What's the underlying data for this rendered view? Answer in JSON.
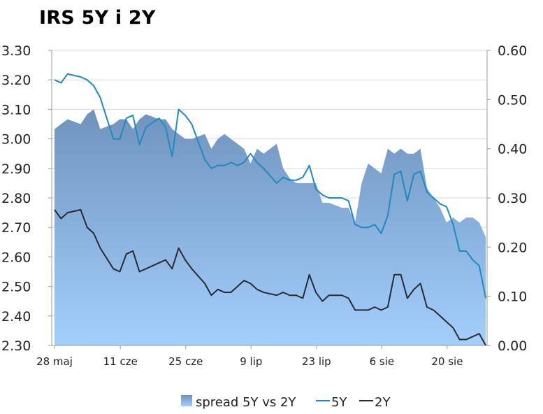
{
  "chart_data": {
    "type": "line",
    "title": "IRS 5Y i 2Y",
    "x_tick_labels": [
      "28 maj",
      "11 cze",
      "25 cze",
      "9 lip",
      "23 lip",
      "6 sie",
      "20 sie"
    ],
    "y_left": {
      "ticks": [
        "2.30",
        "2.40",
        "2.50",
        "2.60",
        "2.70",
        "2.80",
        "2.90",
        "3.00",
        "3.10",
        "3.20",
        "3.30"
      ],
      "range": [
        2.3,
        3.3
      ]
    },
    "y_right": {
      "ticks": [
        "0.00",
        "0.10",
        "0.20",
        "0.30",
        "0.40",
        "0.50",
        "0.60"
      ],
      "range": [
        0.0,
        0.6
      ]
    },
    "grid": "horizontal",
    "legend_position": "bottom",
    "colors": {
      "spread_top": "#6f93bd",
      "spread_bottom": "#9fcbfb",
      "five_y": "#1f8ac0",
      "two_y": "#2b2b2b"
    },
    "series": [
      {
        "name": "spread 5Y vs 2Y",
        "kind": "area",
        "axis": "right",
        "x": [
          0,
          1,
          2,
          4,
          5,
          6,
          7,
          9,
          10,
          11,
          12,
          13,
          14,
          16,
          17,
          18,
          19,
          20,
          21,
          23,
          24,
          25,
          26,
          27,
          28,
          29,
          30,
          31,
          32,
          34,
          35,
          36,
          37,
          38,
          39,
          40,
          41,
          42,
          44,
          45,
          46,
          47,
          48,
          49,
          50,
          51,
          52,
          53,
          54,
          55,
          56,
          57,
          58,
          59,
          60,
          61,
          62,
          63,
          64,
          65,
          66
        ],
        "values": [
          0.44,
          0.45,
          0.46,
          0.45,
          0.47,
          0.48,
          0.44,
          0.45,
          0.46,
          0.46,
          0.44,
          0.46,
          0.47,
          0.46,
          0.46,
          0.44,
          0.43,
          0.42,
          0.42,
          0.43,
          0.4,
          0.42,
          0.43,
          0.42,
          0.41,
          0.4,
          0.37,
          0.4,
          0.39,
          0.41,
          0.36,
          0.34,
          0.33,
          0.33,
          0.33,
          0.33,
          0.29,
          0.29,
          0.28,
          0.28,
          0.25,
          0.33,
          0.37,
          0.36,
          0.35,
          0.4,
          0.39,
          0.4,
          0.39,
          0.39,
          0.4,
          0.32,
          0.3,
          0.28,
          0.25,
          0.26,
          0.25,
          0.26,
          0.26,
          0.25,
          0.22
        ]
      },
      {
        "name": "5Y",
        "kind": "line",
        "axis": "left",
        "x": [
          0,
          1,
          2,
          4,
          5,
          6,
          7,
          9,
          10,
          11,
          12,
          13,
          14,
          16,
          17,
          18,
          19,
          20,
          21,
          23,
          24,
          25,
          26,
          27,
          28,
          29,
          30,
          31,
          32,
          34,
          35,
          36,
          37,
          38,
          39,
          40,
          41,
          42,
          44,
          45,
          46,
          47,
          48,
          49,
          50,
          51,
          52,
          53,
          54,
          55,
          56,
          57,
          58,
          59,
          60,
          61,
          62,
          63,
          64,
          65,
          66
        ],
        "values": [
          3.2,
          3.19,
          3.22,
          3.21,
          3.2,
          3.18,
          3.14,
          3.0,
          3.0,
          3.07,
          3.08,
          2.98,
          3.04,
          3.07,
          3.04,
          2.94,
          3.1,
          3.08,
          3.05,
          2.93,
          2.9,
          2.91,
          2.91,
          2.92,
          2.91,
          2.92,
          2.95,
          2.92,
          2.9,
          2.85,
          2.87,
          2.86,
          2.86,
          2.87,
          2.91,
          2.83,
          2.81,
          2.8,
          2.8,
          2.79,
          2.71,
          2.7,
          2.7,
          2.71,
          2.68,
          2.74,
          2.88,
          2.89,
          2.79,
          2.88,
          2.89,
          2.82,
          2.8,
          2.78,
          2.77,
          2.71,
          2.62,
          2.62,
          2.59,
          2.57,
          2.46
        ]
      },
      {
        "name": "2Y",
        "kind": "line",
        "axis": "left",
        "x": [
          0,
          1,
          2,
          4,
          5,
          6,
          7,
          9,
          10,
          11,
          12,
          13,
          14,
          16,
          17,
          18,
          19,
          20,
          21,
          23,
          24,
          25,
          26,
          27,
          28,
          29,
          30,
          31,
          32,
          34,
          35,
          36,
          37,
          38,
          39,
          40,
          41,
          42,
          44,
          45,
          46,
          47,
          48,
          49,
          50,
          51,
          52,
          53,
          54,
          55,
          56,
          57,
          58,
          59,
          60,
          61,
          62,
          63,
          64,
          65,
          66
        ],
        "values": [
          2.76,
          2.73,
          2.75,
          2.76,
          2.7,
          2.68,
          2.63,
          2.56,
          2.55,
          2.61,
          2.62,
          2.55,
          2.56,
          2.58,
          2.59,
          2.56,
          2.63,
          2.59,
          2.56,
          2.51,
          2.47,
          2.49,
          2.48,
          2.48,
          2.5,
          2.52,
          2.51,
          2.49,
          2.48,
          2.47,
          2.48,
          2.47,
          2.47,
          2.46,
          2.54,
          2.48,
          2.45,
          2.47,
          2.47,
          2.46,
          2.42,
          2.42,
          2.42,
          2.43,
          2.42,
          2.43,
          2.54,
          2.54,
          2.46,
          2.49,
          2.51,
          2.43,
          2.42,
          2.4,
          2.38,
          2.36,
          2.32,
          2.32,
          2.33,
          2.34,
          2.3
        ]
      }
    ]
  }
}
